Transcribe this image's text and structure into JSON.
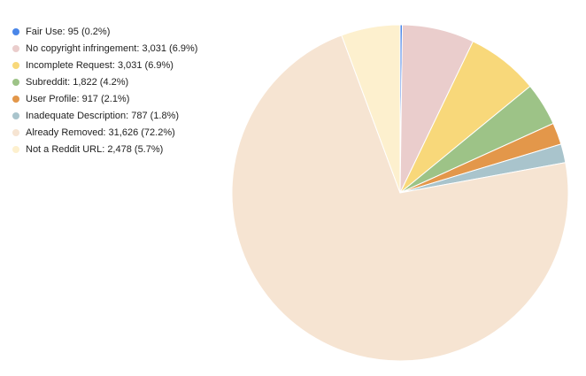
{
  "chart_data": {
    "type": "pie",
    "title": "",
    "legend_position": "top-left",
    "start_angle_deg": 0,
    "direction": "clockwise",
    "series": [
      {
        "name": "Fair Use",
        "value": 95,
        "label": "Fair Use: 95 (0.2%)",
        "color": "#4a86e8"
      },
      {
        "name": "No copyright infringement",
        "value": 3031,
        "label": "No copyright infringement: 3,031 (6.9%)",
        "color": "#eacdcc"
      },
      {
        "name": "Incomplete Request",
        "value": 3031,
        "label": "Incomplete Request: 3,031 (6.9%)",
        "color": "#f8d87a"
      },
      {
        "name": "Subreddit",
        "value": 1822,
        "label": "Subreddit: 1,822 (4.2%)",
        "color": "#9dc387"
      },
      {
        "name": "User Profile",
        "value": 917,
        "label": "User Profile: 917 (2.1%)",
        "color": "#e3974a"
      },
      {
        "name": "Inadequate Description",
        "value": 787,
        "label": "Inadequate Description: 787 (1.8%)",
        "color": "#a9c4cc"
      },
      {
        "name": "Already Removed",
        "value": 31626,
        "label": "Already Removed: 31,626 (72.2%)",
        "color": "#f6e4d2"
      },
      {
        "name": "Not a Reddit URL",
        "value": 2478,
        "label": "Not a Reddit URL: 2,478 (5.7%)",
        "color": "#fdf0ce"
      }
    ]
  }
}
